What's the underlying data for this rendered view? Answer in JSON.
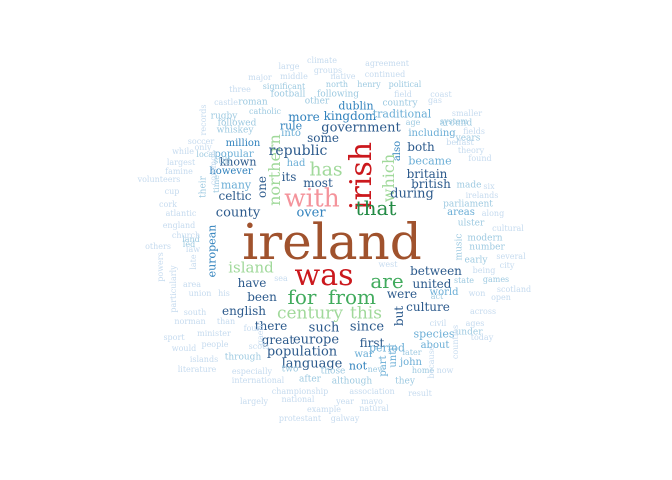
{
  "palette": {
    "pale": "#c6dbef",
    "light_blue": "#9ecae1",
    "blue": "#6baed6",
    "dark_blue": "#3182bd",
    "navy": "#2c5a8c",
    "light_green": "#a1d99b",
    "green": "#41ab5d",
    "dark_green": "#238b45",
    "pink": "#f4939b",
    "red": "#cb181d",
    "brown": "#a0522d"
  },
  "words": [
    {
      "text": "ireland",
      "color": "brown"
    },
    {
      "text": "was",
      "color": "red"
    },
    {
      "text": "irish",
      "color": "red"
    },
    {
      "text": "with",
      "color": "pink"
    },
    {
      "text": "are",
      "color": "green"
    },
    {
      "text": "for",
      "color": "green"
    },
    {
      "text": "from",
      "color": "green"
    },
    {
      "text": "that",
      "color": "dark_green"
    },
    {
      "text": "has",
      "color": "light_green"
    },
    {
      "text": "which",
      "color": "light_green"
    },
    {
      "text": "northern",
      "color": "light_green"
    },
    {
      "text": "island",
      "color": "light_green"
    },
    {
      "text": "century",
      "color": "light_green"
    },
    {
      "text": "this",
      "color": "light_green"
    },
    {
      "text": "republic",
      "color": "navy"
    },
    {
      "text": "some",
      "color": "navy"
    },
    {
      "text": "government",
      "color": "navy"
    },
    {
      "text": "kingdom",
      "color": "dark_blue"
    },
    {
      "text": "more",
      "color": "dark_blue"
    },
    {
      "text": "its",
      "color": "navy"
    },
    {
      "text": "most",
      "color": "navy"
    },
    {
      "text": "over",
      "color": "dark_blue"
    },
    {
      "text": "county",
      "color": "navy"
    },
    {
      "text": "one",
      "color": "navy"
    },
    {
      "text": "during",
      "color": "navy"
    },
    {
      "text": "britain",
      "color": "navy"
    },
    {
      "text": "british",
      "color": "navy"
    },
    {
      "text": "both",
      "color": "navy"
    },
    {
      "text": "became",
      "color": "blue"
    },
    {
      "text": "between",
      "color": "navy"
    },
    {
      "text": "united",
      "color": "navy"
    },
    {
      "text": "culture",
      "color": "navy"
    },
    {
      "text": "were",
      "color": "navy"
    },
    {
      "text": "but",
      "color": "navy"
    },
    {
      "text": "since",
      "color": "navy"
    },
    {
      "text": "such",
      "color": "navy"
    },
    {
      "text": "there",
      "color": "navy"
    },
    {
      "text": "europe",
      "color": "navy"
    },
    {
      "text": "great",
      "color": "navy"
    },
    {
      "text": "population",
      "color": "navy"
    },
    {
      "text": "language",
      "color": "navy"
    },
    {
      "text": "first",
      "color": "navy"
    },
    {
      "text": "period",
      "color": "blue"
    },
    {
      "text": "not",
      "color": "dark_blue"
    },
    {
      "text": "english",
      "color": "navy"
    },
    {
      "text": "been",
      "color": "navy"
    },
    {
      "text": "have",
      "color": "navy"
    },
    {
      "text": "celtic",
      "color": "navy"
    },
    {
      "text": "many",
      "color": "blue"
    },
    {
      "text": "however",
      "color": "dark_blue"
    },
    {
      "text": "known",
      "color": "navy"
    },
    {
      "text": "popular",
      "color": "blue"
    },
    {
      "text": "million",
      "color": "dark_blue"
    },
    {
      "text": "european",
      "color": "dark_blue"
    },
    {
      "text": "dublin",
      "color": "dark_blue"
    },
    {
      "text": "rule",
      "color": "dark_blue"
    },
    {
      "text": "into",
      "color": "blue"
    },
    {
      "text": "had",
      "color": "blue"
    },
    {
      "text": "also",
      "color": "dark_blue"
    },
    {
      "text": "traditional",
      "color": "blue"
    },
    {
      "text": "including",
      "color": "blue"
    },
    {
      "text": "world",
      "color": "blue"
    },
    {
      "text": "species",
      "color": "blue"
    },
    {
      "text": "about",
      "color": "blue"
    },
    {
      "text": "war",
      "color": "blue"
    },
    {
      "text": "until",
      "color": "blue"
    },
    {
      "text": "part",
      "color": "blue"
    },
    {
      "text": "john",
      "color": "blue"
    },
    {
      "text": "areas",
      "color": "blue"
    },
    {
      "text": "ulster",
      "color": "light_blue"
    },
    {
      "text": "made",
      "color": "light_blue"
    },
    {
      "text": "around",
      "color": "light_blue"
    },
    {
      "text": "parliament",
      "color": "light_blue"
    },
    {
      "text": "early",
      "color": "light_blue"
    },
    {
      "text": "years",
      "color": "light_blue"
    },
    {
      "text": "number",
      "color": "light_blue"
    },
    {
      "text": "modern",
      "color": "light_blue"
    },
    {
      "text": "music",
      "color": "light_blue"
    },
    {
      "text": "their",
      "color": "light_blue"
    },
    {
      "text": "still",
      "color": "light_blue"
    },
    {
      "text": "roman",
      "color": "light_blue"
    },
    {
      "text": "other",
      "color": "light_blue"
    },
    {
      "text": "football",
      "color": "light_blue"
    },
    {
      "text": "following",
      "color": "light_blue"
    },
    {
      "text": "catholic",
      "color": "light_blue"
    },
    {
      "text": "rugby",
      "color": "light_blue"
    },
    {
      "text": "followed",
      "color": "light_blue"
    },
    {
      "text": "whiskey",
      "color": "light_blue"
    },
    {
      "text": "local",
      "color": "light_blue"
    },
    {
      "text": "time",
      "color": "light_blue"
    },
    {
      "text": "north",
      "color": "light_blue"
    },
    {
      "text": "henry",
      "color": "light_blue"
    },
    {
      "text": "political",
      "color": "light_blue"
    },
    {
      "text": "country",
      "color": "light_blue"
    },
    {
      "text": "age",
      "color": "light_blue"
    },
    {
      "text": "system",
      "color": "light_blue"
    },
    {
      "text": "significant",
      "color": "light_blue"
    },
    {
      "text": "land",
      "color": "light_blue"
    },
    {
      "text": "after",
      "color": "light_blue"
    },
    {
      "text": "through",
      "color": "light_blue"
    },
    {
      "text": "two",
      "color": "light_blue"
    },
    {
      "text": "those",
      "color": "light_blue"
    },
    {
      "text": "although",
      "color": "light_blue"
    },
    {
      "text": "new",
      "color": "light_blue"
    },
    {
      "text": "they",
      "color": "light_blue"
    },
    {
      "text": "later",
      "color": "light_blue"
    },
    {
      "text": "home",
      "color": "light_blue"
    },
    {
      "text": "state",
      "color": "light_blue"
    },
    {
      "text": "games",
      "color": "light_blue"
    },
    {
      "text": "under",
      "color": "light_blue"
    },
    {
      "text": "act",
      "color": "light_blue"
    },
    {
      "text": "led",
      "color": "light_blue"
    },
    {
      "text": "climate",
      "color": "pale"
    },
    {
      "text": "agreement",
      "color": "pale"
    },
    {
      "text": "large",
      "color": "pale"
    },
    {
      "text": "groups",
      "color": "pale"
    },
    {
      "text": "middle",
      "color": "pale"
    },
    {
      "text": "native",
      "color": "pale"
    },
    {
      "text": "continued",
      "color": "pale"
    },
    {
      "text": "major",
      "color": "pale"
    },
    {
      "text": "three",
      "color": "pale"
    },
    {
      "text": "field",
      "color": "pale"
    },
    {
      "text": "coast",
      "color": "pale"
    },
    {
      "text": "castle",
      "color": "pale"
    },
    {
      "text": "gas",
      "color": "pale"
    },
    {
      "text": "smaller",
      "color": "pale"
    },
    {
      "text": "records",
      "color": "pale"
    },
    {
      "text": "soccer",
      "color": "pale"
    },
    {
      "text": "fields",
      "color": "pale"
    },
    {
      "text": "only",
      "color": "pale"
    },
    {
      "text": "belfast",
      "color": "pale"
    },
    {
      "text": "while",
      "color": "pale"
    },
    {
      "text": "theory",
      "color": "pale"
    },
    {
      "text": "largest",
      "color": "pale"
    },
    {
      "text": "common",
      "color": "pale"
    },
    {
      "text": "found",
      "color": "pale"
    },
    {
      "text": "famine",
      "color": "pale"
    },
    {
      "text": "volunteers",
      "color": "pale"
    },
    {
      "text": "six",
      "color": "pale"
    },
    {
      "text": "irelands",
      "color": "pale"
    },
    {
      "text": "cup",
      "color": "pale"
    },
    {
      "text": "cork",
      "color": "pale"
    },
    {
      "text": "along",
      "color": "pale"
    },
    {
      "text": "atlantic",
      "color": "pale"
    },
    {
      "text": "cultural",
      "color": "pale"
    },
    {
      "text": "england",
      "color": "pale"
    },
    {
      "text": "church",
      "color": "pale"
    },
    {
      "text": "others",
      "color": "pale"
    },
    {
      "text": "several",
      "color": "pale"
    },
    {
      "text": "city",
      "color": "pale"
    },
    {
      "text": "powers",
      "color": "pale"
    },
    {
      "text": "particularly",
      "color": "pale"
    },
    {
      "text": "law",
      "color": "pale"
    },
    {
      "text": "late",
      "color": "pale"
    },
    {
      "text": "area",
      "color": "pale"
    },
    {
      "text": "being",
      "color": "pale"
    },
    {
      "text": "union",
      "color": "pale"
    },
    {
      "text": "his",
      "color": "pale"
    },
    {
      "text": "west",
      "color": "pale"
    },
    {
      "text": "sea",
      "color": "pale"
    },
    {
      "text": "scotland",
      "color": "pale"
    },
    {
      "text": "open",
      "color": "pale"
    },
    {
      "text": "south",
      "color": "pale"
    },
    {
      "text": "four",
      "color": "pale"
    },
    {
      "text": "won",
      "color": "pale"
    },
    {
      "text": "across",
      "color": "pale"
    },
    {
      "text": "norman",
      "color": "pale"
    },
    {
      "text": "than",
      "color": "pale"
    },
    {
      "text": "ages",
      "color": "pale"
    },
    {
      "text": "minister",
      "color": "pale"
    },
    {
      "text": "gaelic",
      "color": "pale"
    },
    {
      "text": "civil",
      "color": "pale"
    },
    {
      "text": "sport",
      "color": "pale"
    },
    {
      "text": "would",
      "color": "pale"
    },
    {
      "text": "people",
      "color": "pale"
    },
    {
      "text": "scots",
      "color": "pale"
    },
    {
      "text": "counties",
      "color": "pale"
    },
    {
      "text": "today",
      "color": "pale"
    },
    {
      "text": "islands",
      "color": "pale"
    },
    {
      "text": "literature",
      "color": "pale"
    },
    {
      "text": "especially",
      "color": "pale"
    },
    {
      "text": "now",
      "color": "pale"
    },
    {
      "text": "international",
      "color": "pale"
    },
    {
      "text": "championship",
      "color": "pale"
    },
    {
      "text": "association",
      "color": "pale"
    },
    {
      "text": "result",
      "color": "pale"
    },
    {
      "text": "largely",
      "color": "pale"
    },
    {
      "text": "national",
      "color": "pale"
    },
    {
      "text": "year",
      "color": "pale"
    },
    {
      "text": "mayo",
      "color": "pale"
    },
    {
      "text": "example",
      "color": "pale"
    },
    {
      "text": "natural",
      "color": "pale"
    },
    {
      "text": "protestant",
      "color": "pale"
    },
    {
      "text": "galway",
      "color": "pale"
    },
    {
      "text": "because",
      "color": "pale"
    }
  ]
}
